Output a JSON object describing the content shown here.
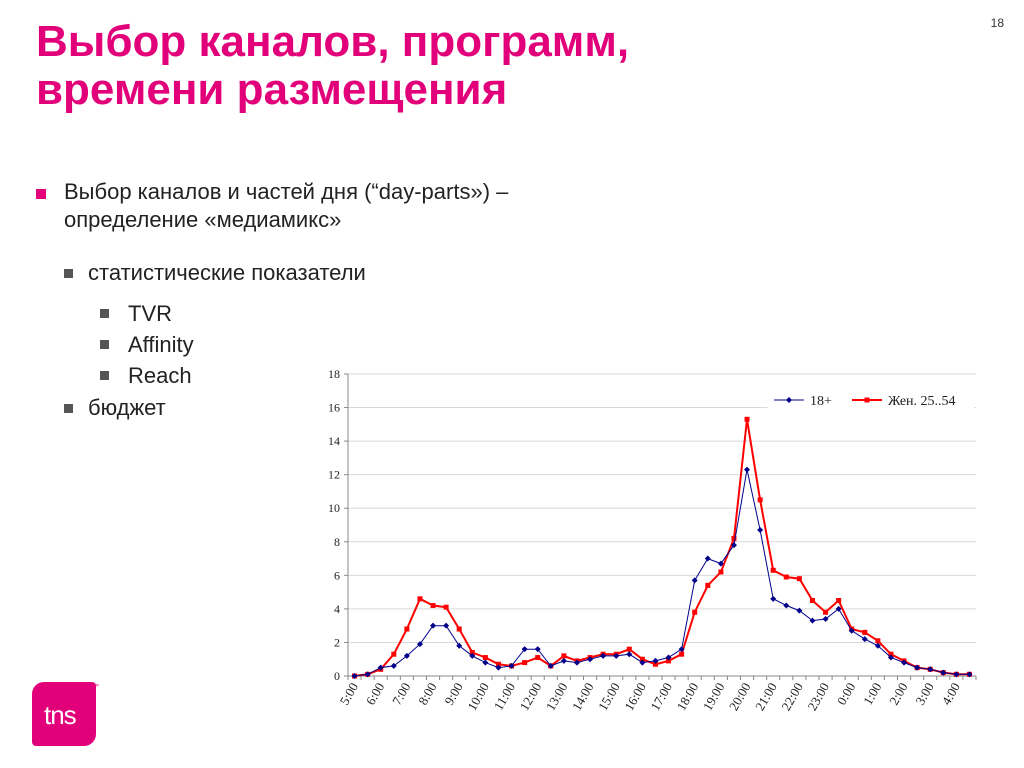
{
  "page_number": "18",
  "title": {
    "line1": "Выбор каналов, программ,",
    "line2": "времени размещения"
  },
  "bullets": {
    "main_line1": "Выбор каналов и частей дня (“day-parts») –",
    "main_line2": "определение «медиамикс»",
    "sub1": "статистические показатели",
    "metrics": [
      "TVR",
      "Affinity",
      "Reach"
    ],
    "sub2": "бюджет"
  },
  "logo": {
    "text": "tns",
    "tm": "™"
  },
  "colors": {
    "accent": "#e2007a",
    "series_18plus": "#00008b",
    "series_women": "#ff0000"
  },
  "chart_data": {
    "type": "line",
    "x_labels": [
      "5:00",
      "6:00",
      "7:00",
      "8:00",
      "9:00",
      "10:00",
      "11:00",
      "12:00",
      "13:00",
      "14:00",
      "15:00",
      "16:00",
      "17:00",
      "18:00",
      "19:00",
      "20:00",
      "21:00",
      "22:00",
      "23:00",
      "0:00",
      "1:00",
      "2:00",
      "3:00",
      "4:00"
    ],
    "ylim": [
      0,
      18
    ],
    "yticks": [
      0,
      2,
      4,
      6,
      8,
      10,
      12,
      14,
      16,
      18
    ],
    "legend_position": "top-right",
    "grid": true,
    "series": [
      {
        "name": "18+",
        "color": "#00008b",
        "marker": "diamond",
        "values": [
          0.0,
          0.1,
          0.5,
          0.6,
          1.2,
          1.9,
          3.0,
          3.0,
          1.8,
          1.2,
          0.8,
          0.5,
          0.6,
          1.6,
          1.6,
          0.6,
          0.9,
          0.8,
          1.0,
          1.2,
          1.2,
          1.3,
          0.8,
          0.9,
          1.1,
          1.6,
          5.7,
          7.0,
          6.7,
          7.8,
          12.3,
          8.7,
          4.6,
          4.2,
          3.9,
          3.3,
          3.4,
          4.0,
          2.7,
          2.2,
          1.8,
          1.1,
          0.8,
          0.5,
          0.4,
          0.2,
          0.1,
          0.1
        ]
      },
      {
        "name": "Жен. 25..54",
        "color": "#ff0000",
        "marker": "square",
        "values": [
          0.0,
          0.1,
          0.4,
          1.3,
          2.8,
          4.6,
          4.2,
          4.1,
          2.8,
          1.4,
          1.1,
          0.7,
          0.6,
          0.8,
          1.1,
          0.6,
          1.2,
          0.9,
          1.1,
          1.3,
          1.3,
          1.6,
          1.0,
          0.7,
          0.9,
          1.3,
          3.8,
          5.4,
          6.2,
          8.2,
          15.3,
          10.5,
          6.3,
          5.9,
          5.8,
          4.5,
          3.8,
          4.5,
          2.8,
          2.6,
          2.1,
          1.3,
          0.9,
          0.5,
          0.4,
          0.2,
          0.1,
          0.1
        ]
      }
    ]
  }
}
